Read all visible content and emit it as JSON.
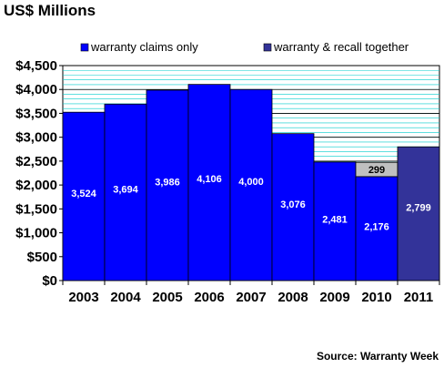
{
  "title": "US$ Millions",
  "source": "Source: Warranty Week",
  "colors": {
    "claims": "#0000FF",
    "together": "#333399",
    "recall_segment": "#C0C0C0",
    "grid": "#00CCCC"
  },
  "chart_data": {
    "type": "bar",
    "stacked": true,
    "categories": [
      "2003",
      "2004",
      "2005",
      "2006",
      "2007",
      "2008",
      "2009",
      "2010",
      "2011"
    ],
    "series": [
      {
        "name": "warranty claims only",
        "values": [
          3524,
          3694,
          3986,
          4106,
          4000,
          3076,
          2481,
          2176,
          null
        ]
      },
      {
        "name": "",
        "values": [
          null,
          null,
          null,
          null,
          null,
          null,
          null,
          299,
          null
        ]
      },
      {
        "name": "warranty & recall together",
        "values": [
          null,
          null,
          null,
          null,
          null,
          null,
          null,
          null,
          2799
        ]
      }
    ],
    "data_labels": [
      "3,524",
      "3,694",
      "3,986",
      "4,106",
      "4,000",
      "3,076",
      "2,481",
      "2,176",
      "299",
      "2,799"
    ],
    "y_tick_labels": [
      "$0",
      "$500",
      "$1,000",
      "$1,500",
      "$2,000",
      "$2,500",
      "$3,000",
      "$3,500",
      "$4,000",
      "$4,500"
    ],
    "y_ticks": [
      0,
      500,
      1000,
      1500,
      2000,
      2500,
      3000,
      3500,
      4000,
      4500
    ],
    "ylim": [
      0,
      4500
    ],
    "minor_grid_step": 100,
    "grid": true,
    "legend_position": "top"
  }
}
